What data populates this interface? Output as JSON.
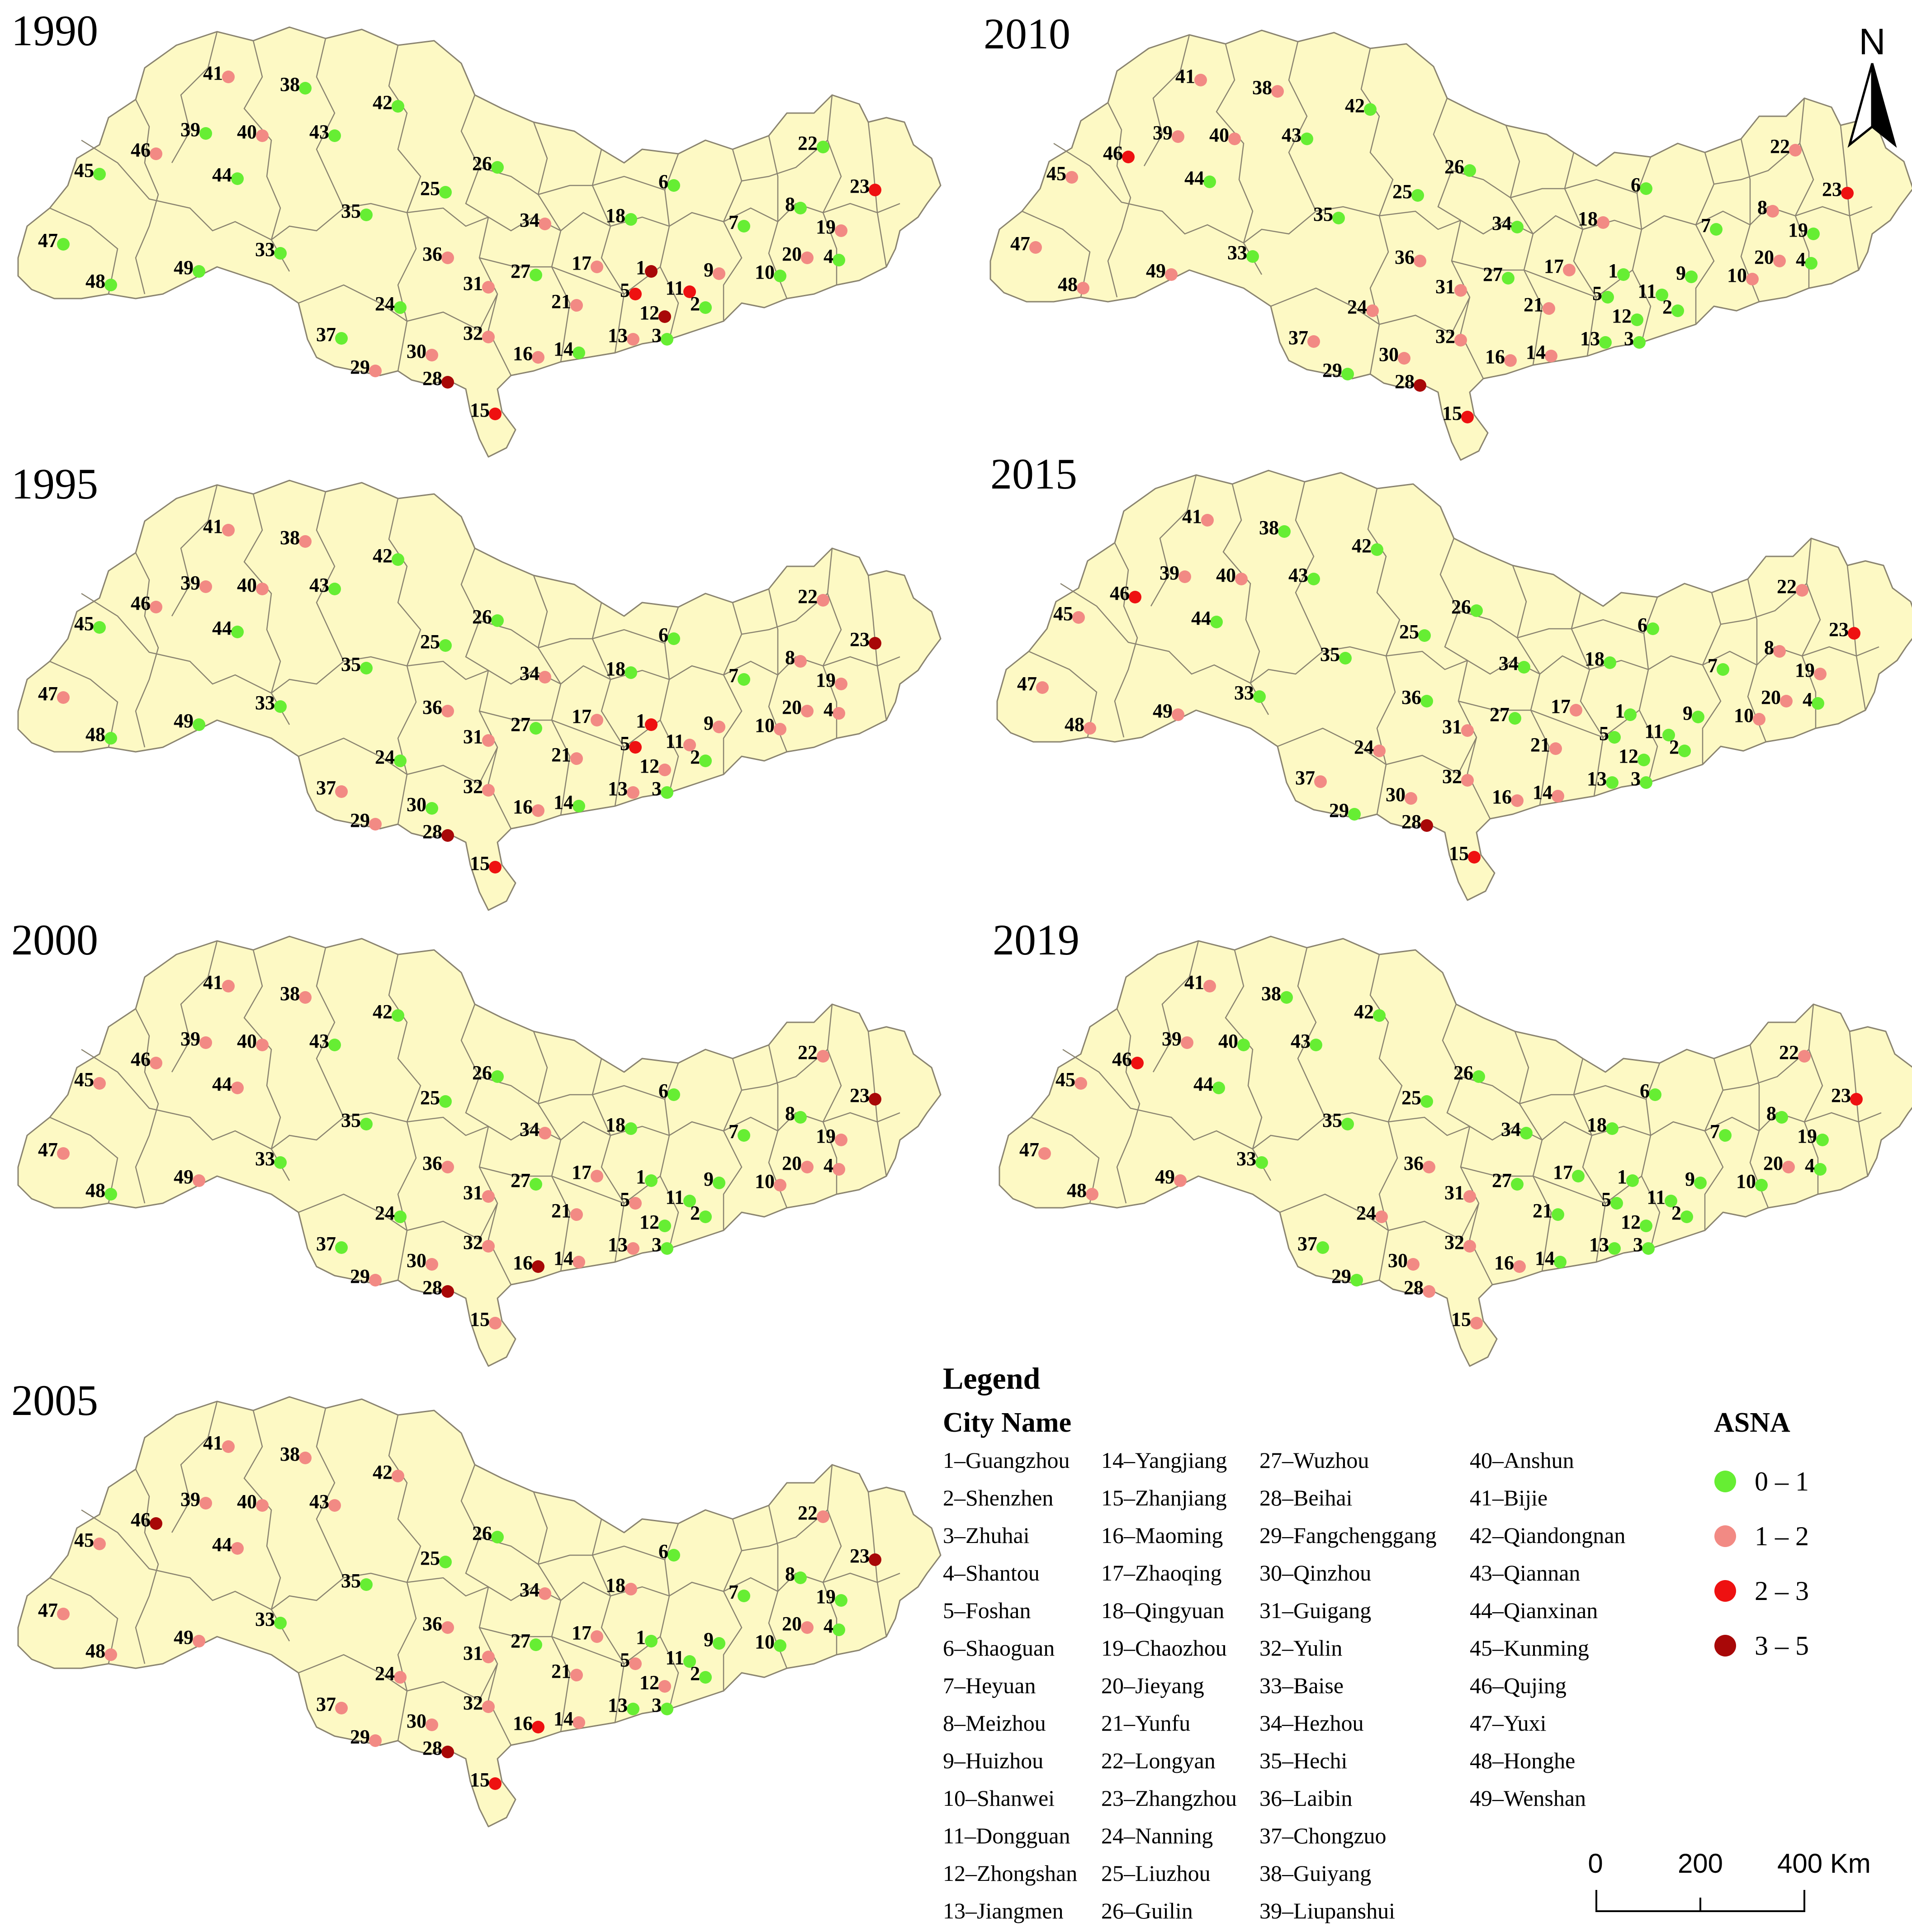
{
  "panels": [
    {
      "year": "1990",
      "classes": {
        "1": "3-5",
        "2": "0-1",
        "3": "0-1",
        "4": "0-1",
        "5": "2-3",
        "6": "0-1",
        "7": "0-1",
        "8": "0-1",
        "9": "1-2",
        "10": "0-1",
        "11": "2-3",
        "12": "3-5",
        "13": "1-2",
        "14": "0-1",
        "15": "2-3",
        "16": "1-2",
        "17": "1-2",
        "18": "0-1",
        "19": "1-2",
        "20": "1-2",
        "21": "1-2",
        "22": "0-1",
        "23": "2-3",
        "24": "0-1",
        "25": "0-1",
        "26": "0-1",
        "27": "0-1",
        "28": "3-5",
        "29": "1-2",
        "30": "1-2",
        "31": "1-2",
        "32": "1-2",
        "33": "0-1",
        "34": "1-2",
        "35": "0-1",
        "36": "1-2",
        "37": "0-1",
        "38": "0-1",
        "39": "0-1",
        "40": "1-2",
        "41": "1-2",
        "42": "0-1",
        "43": "0-1",
        "44": "0-1",
        "45": "0-1",
        "46": "1-2",
        "47": "0-1",
        "48": "0-1",
        "49": "0-1"
      }
    },
    {
      "year": "1995",
      "classes": {
        "1": "2-3",
        "2": "0-1",
        "3": "0-1",
        "4": "1-2",
        "5": "2-3",
        "6": "0-1",
        "7": "0-1",
        "8": "1-2",
        "9": "1-2",
        "10": "1-2",
        "11": "1-2",
        "12": "1-2",
        "13": "1-2",
        "14": "0-1",
        "15": "2-3",
        "16": "1-2",
        "17": "1-2",
        "18": "0-1",
        "19": "1-2",
        "20": "1-2",
        "21": "1-2",
        "22": "1-2",
        "23": "3-5",
        "24": "0-1",
        "25": "0-1",
        "26": "0-1",
        "27": "0-1",
        "28": "3-5",
        "29": "1-2",
        "30": "0-1",
        "31": "1-2",
        "32": "1-2",
        "33": "0-1",
        "34": "1-2",
        "35": "0-1",
        "36": "1-2",
        "37": "1-2",
        "38": "1-2",
        "39": "1-2",
        "40": "1-2",
        "41": "1-2",
        "42": "0-1",
        "43": "0-1",
        "44": "0-1",
        "45": "0-1",
        "46": "1-2",
        "47": "1-2",
        "48": "0-1",
        "49": "0-1"
      }
    },
    {
      "year": "2000",
      "classes": {
        "1": "0-1",
        "2": "0-1",
        "3": "0-1",
        "4": "1-2",
        "5": "1-2",
        "6": "0-1",
        "7": "0-1",
        "8": "0-1",
        "9": "0-1",
        "10": "1-2",
        "11": "0-1",
        "12": "0-1",
        "13": "1-2",
        "14": "1-2",
        "15": "1-2",
        "16": "3-5",
        "17": "1-2",
        "18": "0-1",
        "19": "1-2",
        "20": "1-2",
        "21": "1-2",
        "22": "1-2",
        "23": "3-5",
        "24": "0-1",
        "25": "0-1",
        "26": "0-1",
        "27": "0-1",
        "28": "3-5",
        "29": "1-2",
        "30": "1-2",
        "31": "1-2",
        "32": "1-2",
        "33": "0-1",
        "34": "1-2",
        "35": "0-1",
        "36": "1-2",
        "37": "0-1",
        "38": "1-2",
        "39": "1-2",
        "40": "1-2",
        "41": "1-2",
        "42": "0-1",
        "43": "0-1",
        "44": "1-2",
        "45": "1-2",
        "46": "1-2",
        "47": "1-2",
        "48": "0-1",
        "49": "1-2"
      }
    },
    {
      "year": "2005",
      "classes": {
        "1": "0-1",
        "2": "0-1",
        "3": "0-1",
        "4": "0-1",
        "5": "1-2",
        "6": "0-1",
        "7": "0-1",
        "8": "0-1",
        "9": "0-1",
        "10": "0-1",
        "11": "0-1",
        "12": "1-2",
        "13": "0-1",
        "14": "1-2",
        "15": "2-3",
        "16": "2-3",
        "17": "1-2",
        "18": "1-2",
        "19": "0-1",
        "20": "1-2",
        "21": "1-2",
        "22": "1-2",
        "23": "3-5",
        "24": "1-2",
        "25": "0-1",
        "26": "0-1",
        "27": "0-1",
        "28": "3-5",
        "29": "1-2",
        "30": "1-2",
        "31": "1-2",
        "32": "1-2",
        "33": "0-1",
        "34": "1-2",
        "35": "0-1",
        "36": "1-2",
        "37": "1-2",
        "38": "1-2",
        "39": "1-2",
        "40": "1-2",
        "41": "1-2",
        "42": "1-2",
        "43": "1-2",
        "44": "1-2",
        "45": "1-2",
        "46": "3-5",
        "47": "1-2",
        "48": "1-2",
        "49": "1-2"
      }
    },
    {
      "year": "2010",
      "classes": {
        "1": "0-1",
        "2": "0-1",
        "3": "0-1",
        "4": "0-1",
        "5": "0-1",
        "6": "0-1",
        "7": "0-1",
        "8": "1-2",
        "9": "0-1",
        "10": "1-2",
        "11": "0-1",
        "12": "0-1",
        "13": "0-1",
        "14": "1-2",
        "15": "2-3",
        "16": "1-2",
        "17": "1-2",
        "18": "1-2",
        "19": "0-1",
        "20": "1-2",
        "21": "1-2",
        "22": "1-2",
        "23": "2-3",
        "24": "1-2",
        "25": "0-1",
        "26": "0-1",
        "27": "0-1",
        "28": "3-5",
        "29": "0-1",
        "30": "1-2",
        "31": "1-2",
        "32": "1-2",
        "33": "0-1",
        "34": "0-1",
        "35": "0-1",
        "36": "1-2",
        "37": "1-2",
        "38": "1-2",
        "39": "1-2",
        "40": "1-2",
        "41": "1-2",
        "42": "0-1",
        "43": "0-1",
        "44": "0-1",
        "45": "1-2",
        "46": "2-3",
        "47": "1-2",
        "48": "1-2",
        "49": "1-2"
      }
    },
    {
      "year": "2015",
      "classes": {
        "1": "0-1",
        "2": "0-1",
        "3": "0-1",
        "4": "0-1",
        "5": "0-1",
        "6": "0-1",
        "7": "0-1",
        "8": "1-2",
        "9": "0-1",
        "10": "1-2",
        "11": "0-1",
        "12": "0-1",
        "13": "0-1",
        "14": "1-2",
        "15": "2-3",
        "16": "1-2",
        "17": "1-2",
        "18": "0-1",
        "19": "1-2",
        "20": "1-2",
        "21": "1-2",
        "22": "1-2",
        "23": "2-3",
        "24": "1-2",
        "25": "0-1",
        "26": "0-1",
        "27": "0-1",
        "28": "3-5",
        "29": "0-1",
        "30": "1-2",
        "31": "1-2",
        "32": "1-2",
        "33": "0-1",
        "34": "0-1",
        "35": "0-1",
        "36": "0-1",
        "37": "1-2",
        "38": "0-1",
        "39": "1-2",
        "40": "1-2",
        "41": "1-2",
        "42": "0-1",
        "43": "0-1",
        "44": "0-1",
        "45": "1-2",
        "46": "2-3",
        "47": "1-2",
        "48": "1-2",
        "49": "1-2"
      }
    },
    {
      "year": "2019",
      "classes": {
        "1": "0-1",
        "2": "0-1",
        "3": "0-1",
        "4": "0-1",
        "5": "0-1",
        "6": "0-1",
        "7": "0-1",
        "8": "0-1",
        "9": "0-1",
        "10": "0-1",
        "11": "0-1",
        "12": "0-1",
        "13": "0-1",
        "14": "0-1",
        "15": "1-2",
        "16": "1-2",
        "17": "0-1",
        "18": "0-1",
        "19": "0-1",
        "20": "1-2",
        "21": "0-1",
        "22": "1-2",
        "23": "2-3",
        "24": "1-2",
        "25": "0-1",
        "26": "0-1",
        "27": "0-1",
        "28": "1-2",
        "29": "0-1",
        "30": "1-2",
        "31": "1-2",
        "32": "1-2",
        "33": "0-1",
        "34": "0-1",
        "35": "0-1",
        "36": "1-2",
        "37": "0-1",
        "38": "0-1",
        "39": "1-2",
        "40": "0-1",
        "41": "1-2",
        "42": "0-1",
        "43": "0-1",
        "44": "0-1",
        "45": "1-2",
        "46": "2-3",
        "47": "1-2",
        "48": "1-2",
        "49": "1-2"
      }
    }
  ],
  "legend": {
    "title": "Legend",
    "subtitle": "City Name",
    "cities": [
      "1–Guangzhou",
      "2–Shenzhen",
      "3–Zhuhai",
      "4–Shantou",
      "5–Foshan",
      "6–Shaoguan",
      "7–Heyuan",
      "8–Meizhou",
      "9–Huizhou",
      "10–Shanwei",
      "11–Dongguan",
      "12–Zhongshan",
      "13–Jiangmen",
      "14–Yangjiang",
      "15–Zhanjiang",
      "16–Maoming",
      "17–Zhaoqing",
      "18–Qingyuan",
      "19–Chaozhou",
      "20–Jieyang",
      "21–Yunfu",
      "22–Longyan",
      "23–Zhangzhou",
      "24–Nanning",
      "25–Liuzhou",
      "26–Guilin",
      "27–Wuzhou",
      "28–Beihai",
      "29–Fangchenggang",
      "30–Qinzhou",
      "31–Guigang",
      "32–Yulin",
      "33–Baise",
      "34–Hezhou",
      "35–Hechi",
      "36–Laibin",
      "37–Chongzuo",
      "38–Guiyang",
      "39–Liupanshui",
      "40–Anshun",
      "41–Bijie",
      "42–Qiandongnan",
      "43–Qiannan",
      "44–Qianxinan",
      "45–Kunming",
      "46–Qujing",
      "47–Yuxi",
      "48–Honghe",
      "49–Wenshan"
    ],
    "asna_title": "ASNA",
    "asna_classes": [
      {
        "key": "0-1",
        "label": "0 – 1",
        "color": "#66ee33"
      },
      {
        "key": "1-2",
        "label": "1 – 2",
        "color": "#f28a84"
      },
      {
        "key": "2-3",
        "label": "2 – 3",
        "color": "#ee1111"
      },
      {
        "key": "3-5",
        "label": "3 – 5",
        "color": "#a80808"
      }
    ]
  },
  "scale_bar": {
    "labels": [
      "0",
      "200",
      "400 Km"
    ]
  },
  "north_arrow": {
    "label": "N",
    "icon": "north-arrow-icon"
  },
  "colors": {
    "land": "#fdf9c4",
    "border": "#8a8470"
  }
}
